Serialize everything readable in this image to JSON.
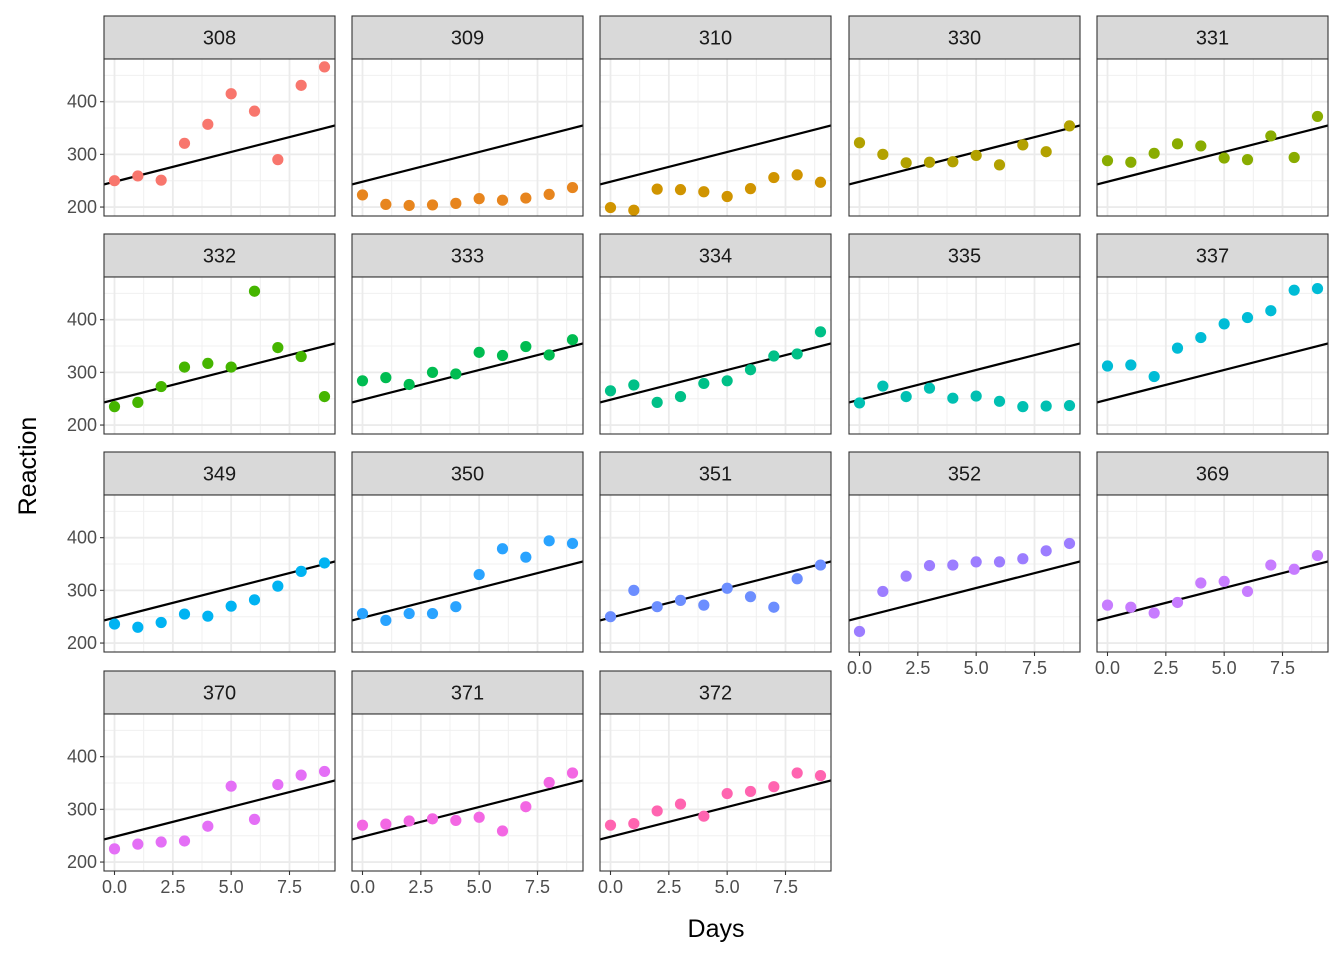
{
  "chart_data": {
    "type": "scatter",
    "xlabel": "Days",
    "ylabel": "Reaction",
    "xlim": [
      -0.45,
      9.45
    ],
    "ylim": [
      183,
      481
    ],
    "x_ticks": [
      0,
      2.5,
      5,
      7.5
    ],
    "x_tick_labels": [
      "0.0",
      "2.5",
      "5.0",
      "7.5"
    ],
    "y_ticks": [
      200,
      300,
      400
    ],
    "y_tick_labels": [
      "200",
      "300",
      "400"
    ],
    "grid": true,
    "facets": "wrap 5 columns",
    "line": {
      "name": "",
      "intercept": 248,
      "slope": 11.3,
      "color": "#000000"
    },
    "x": [
      0,
      1,
      2,
      3,
      4,
      5,
      6,
      7,
      8,
      9
    ],
    "panels": [
      {
        "label": "308",
        "color": "#F8766D",
        "values": [
          250,
          259,
          251,
          321,
          357,
          415,
          382,
          290,
          431,
          466
        ]
      },
      {
        "label": "309",
        "color": "#E7851E",
        "values": [
          223,
          205,
          203,
          204,
          207,
          216,
          213,
          217,
          224,
          237
        ]
      },
      {
        "label": "310",
        "color": "#D09400",
        "values": [
          199,
          194,
          234,
          233,
          229,
          220,
          235,
          256,
          261,
          247
        ]
      },
      {
        "label": "330",
        "color": "#B2A100",
        "values": [
          322,
          300,
          284,
          285,
          286,
          298,
          280,
          318,
          305,
          354
        ]
      },
      {
        "label": "331",
        "color": "#89AC00",
        "values": [
          288,
          285,
          302,
          320,
          316,
          293,
          290,
          335,
          294,
          372
        ]
      },
      {
        "label": "332",
        "color": "#45B500",
        "values": [
          235,
          243,
          273,
          310,
          317,
          310,
          454,
          347,
          330,
          254
        ]
      },
      {
        "label": "333",
        "color": "#00BC51",
        "values": [
          284,
          290,
          277,
          300,
          297,
          338,
          332,
          349,
          333,
          362
        ]
      },
      {
        "label": "334",
        "color": "#00C087",
        "values": [
          265,
          276,
          243,
          254,
          279,
          284,
          305,
          331,
          335,
          377
        ]
      },
      {
        "label": "335",
        "color": "#00C0B2",
        "values": [
          242,
          274,
          254,
          270,
          251,
          255,
          245,
          235,
          236,
          237
        ]
      },
      {
        "label": "337",
        "color": "#00BCD6",
        "values": [
          312,
          314,
          292,
          346,
          366,
          392,
          404,
          417,
          456,
          459
        ]
      },
      {
        "label": "349",
        "color": "#00B3F2",
        "values": [
          236,
          230,
          239,
          255,
          251,
          270,
          282,
          308,
          336,
          352
        ]
      },
      {
        "label": "350",
        "color": "#29A3FF",
        "values": [
          256,
          243,
          256,
          256,
          269,
          330,
          379,
          363,
          394,
          389
        ]
      },
      {
        "label": "351",
        "color": "#6C8EFF",
        "values": [
          250,
          300,
          269,
          281,
          272,
          304,
          288,
          268,
          322,
          348
        ]
      },
      {
        "label": "352",
        "color": "#9C7DFF",
        "values": [
          222,
          298,
          327,
          347,
          348,
          354,
          354,
          360,
          375,
          389
        ]
      },
      {
        "label": "369",
        "color": "#C77CFF",
        "values": [
          272,
          268,
          257,
          277,
          314,
          317,
          298,
          348,
          340,
          366
        ]
      },
      {
        "label": "370",
        "color": "#E46FF6",
        "values": [
          225,
          234,
          238,
          240,
          268,
          344,
          281,
          347,
          365,
          372
        ]
      },
      {
        "label": "371",
        "color": "#F367E3",
        "values": [
          270,
          272,
          278,
          282,
          279,
          285,
          259,
          305,
          351,
          369
        ]
      },
      {
        "label": "372",
        "color": "#FF64B0",
        "values": [
          270,
          273,
          297,
          310,
          287,
          330,
          334,
          343,
          369,
          364
        ]
      }
    ]
  }
}
